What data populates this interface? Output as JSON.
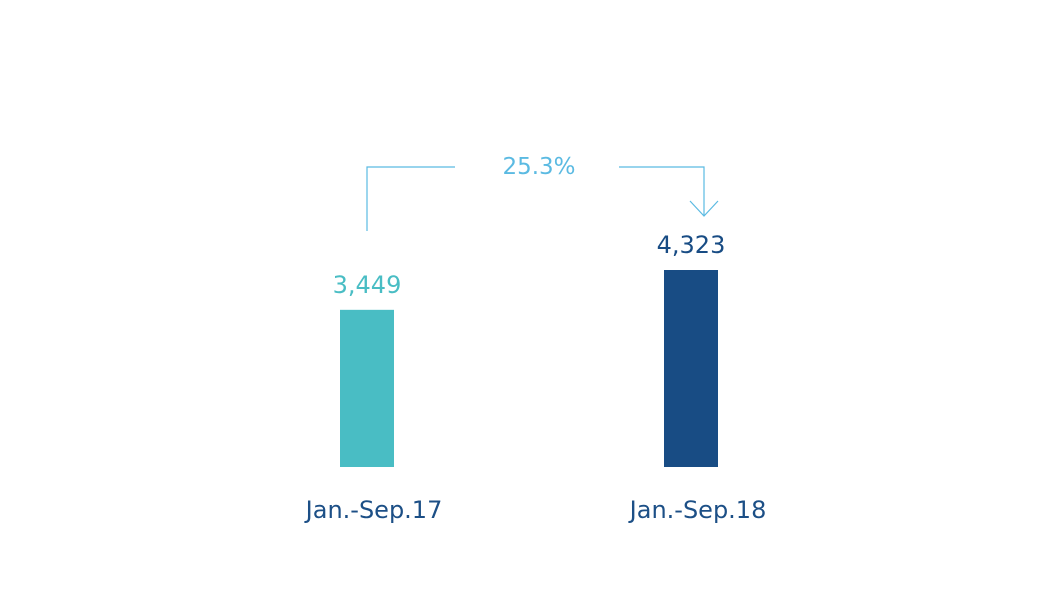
{
  "chart_data": {
    "type": "bar",
    "title": "",
    "xlabel": "",
    "ylabel": "",
    "categories": [
      "Jan.-Sep.17",
      "Jan.-Sep.18"
    ],
    "values": [
      3449,
      4323
    ],
    "value_labels": [
      "3,449",
      "4,323"
    ],
    "colors": [
      "#49bdc4",
      "#184c84"
    ],
    "ylim": [
      0,
      4323
    ],
    "grid": false,
    "legend": "none",
    "annotation": {
      "text": "25.3%",
      "color": "#5bbae2",
      "from": "Jan.-Sep.17",
      "to": "Jan.-Sep.18"
    },
    "category_label_color": "#1c4f86"
  }
}
